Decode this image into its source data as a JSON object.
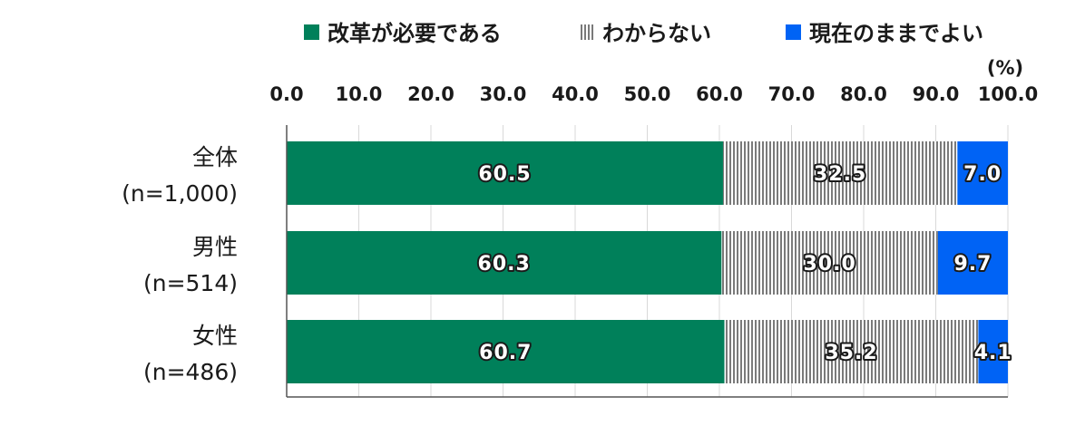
{
  "chart_data": {
    "type": "bar",
    "orientation": "horizontal",
    "stacked": true,
    "unit": "(%)",
    "xlim": [
      0,
      100
    ],
    "x_ticks": [
      "0.0",
      "10.0",
      "20.0",
      "30.0",
      "40.0",
      "50.0",
      "60.0",
      "70.0",
      "80.0",
      "90.0",
      "100.0"
    ],
    "legend_position": "top",
    "categories": [
      {
        "line1": "全体",
        "line2": "(n=1,000)"
      },
      {
        "line1": "男性",
        "line2": "(n=514)"
      },
      {
        "line1": "女性",
        "line2": "(n=486)"
      }
    ],
    "series": [
      {
        "name": "改革が必要である",
        "color": "#00805a",
        "pattern": "solid",
        "values": [
          60.5,
          60.3,
          60.7
        ],
        "labels": [
          "60.5",
          "60.3",
          "60.7"
        ]
      },
      {
        "name": "わからない",
        "color": "#808080",
        "pattern": "vertical-lines",
        "values": [
          32.5,
          30.0,
          35.2
        ],
        "labels": [
          "32.5",
          "30.0",
          "35.2"
        ]
      },
      {
        "name": "現在のままでよい",
        "color": "#0063f5",
        "pattern": "solid",
        "values": [
          7.0,
          9.7,
          4.1
        ],
        "labels": [
          "7.0",
          "9.7",
          "4.1"
        ]
      }
    ]
  }
}
